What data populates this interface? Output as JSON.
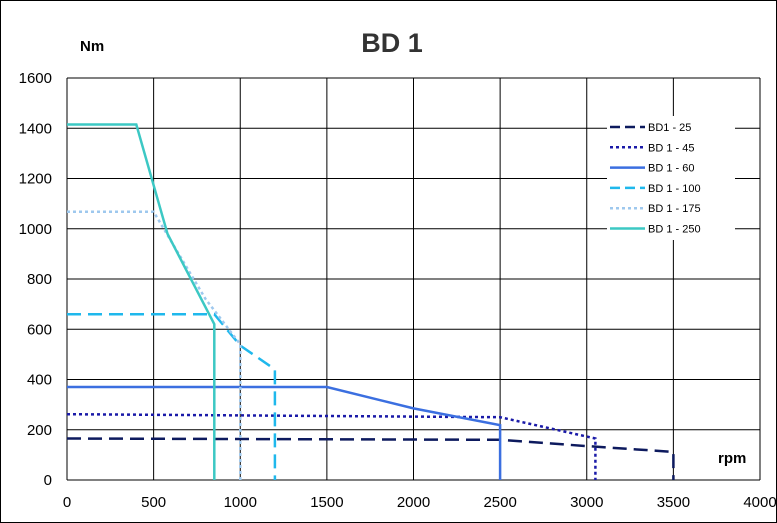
{
  "chart_data": {
    "type": "line",
    "title": "BD 1",
    "ylabel": "Nm",
    "xlabel": "rpm",
    "xlim": [
      0,
      4000
    ],
    "ylim": [
      0,
      1600
    ],
    "xticks": [
      0,
      500,
      1000,
      1500,
      2000,
      2500,
      3000,
      3500,
      4000
    ],
    "yticks": [
      0,
      200,
      400,
      600,
      800,
      1000,
      1200,
      1400,
      1600
    ],
    "grid": true,
    "legend_position": "top-right",
    "series": [
      {
        "name": "BD1 - 25",
        "color": "#0d1a5e",
        "style": "dashed",
        "points": [
          [
            0,
            165
          ],
          [
            2500,
            160
          ],
          [
            3000,
            135
          ],
          [
            3500,
            112
          ],
          [
            3500,
            0
          ]
        ]
      },
      {
        "name": "BD 1 - 45",
        "color": "#1a1aa8",
        "style": "dotted",
        "points": [
          [
            0,
            262
          ],
          [
            2500,
            250
          ],
          [
            3050,
            165
          ],
          [
            3050,
            0
          ]
        ]
      },
      {
        "name": "BD 1 - 60",
        "color": "#3b6fe0",
        "style": "solid",
        "points": [
          [
            0,
            370
          ],
          [
            1500,
            370
          ],
          [
            2000,
            285
          ],
          [
            2500,
            218
          ],
          [
            2500,
            0
          ]
        ]
      },
      {
        "name": "BD 1 - 100",
        "color": "#1fb8ec",
        "style": "dashed",
        "points": [
          [
            0,
            660
          ],
          [
            850,
            660
          ],
          [
            1000,
            535
          ],
          [
            1200,
            440
          ],
          [
            1200,
            0
          ]
        ]
      },
      {
        "name": "BD 1 - 175",
        "color": "#9ec8ee",
        "style": "dotted",
        "points": [
          [
            0,
            1068
          ],
          [
            500,
            1068
          ],
          [
            800,
            720
          ],
          [
            1000,
            540
          ],
          [
            1000,
            0
          ]
        ]
      },
      {
        "name": "BD 1 - 250",
        "color": "#3cc8c4",
        "style": "solid",
        "points": [
          [
            0,
            1415
          ],
          [
            400,
            1415
          ],
          [
            580,
            980
          ],
          [
            850,
            620
          ],
          [
            850,
            0
          ]
        ]
      }
    ]
  }
}
